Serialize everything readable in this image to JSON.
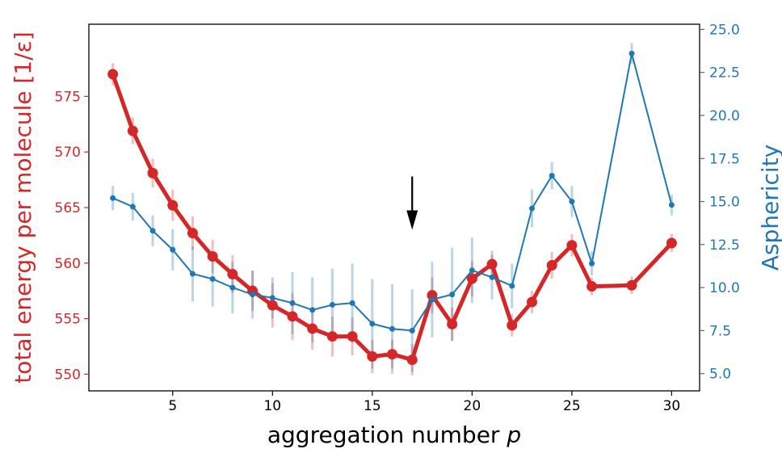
{
  "chart_data": {
    "type": "line",
    "xlabel_text": "aggregation number ",
    "xlabel_var": "p",
    "ylabel_left": "total energy per molecule [1/ε]",
    "ylabel_right": "Asphericity",
    "xlim": [
      0.8,
      31.4
    ],
    "xticks": [
      5,
      10,
      15,
      20,
      25,
      30
    ],
    "ylim_left": [
      548.5,
      581.5
    ],
    "yticks_left": [
      550,
      555,
      560,
      565,
      570,
      575
    ],
    "ylim_right": [
      4.0,
      25.3
    ],
    "yticks_right": [
      5.0,
      7.5,
      10.0,
      12.5,
      15.0,
      17.5,
      20.0,
      22.5,
      25.0
    ],
    "colors": {
      "left": "#d62728",
      "right": "#1f77b4",
      "arrow": "#000000"
    },
    "arrow_x": 17,
    "arrow_y_top": 567.8,
    "arrow_y_bottom": 563.0,
    "series": [
      {
        "name": "",
        "axis": "left",
        "x": [
          2,
          3,
          4,
          5,
          6,
          7,
          8,
          9,
          10,
          11,
          12,
          13,
          14,
          15,
          16,
          17,
          18,
          19,
          20,
          21,
          22,
          23,
          24,
          25,
          26,
          28,
          30
        ],
        "y": [
          577.0,
          571.9,
          568.1,
          565.2,
          562.7,
          560.6,
          559.0,
          557.5,
          556.2,
          555.2,
          554.1,
          553.4,
          553.4,
          551.6,
          551.8,
          551.3,
          557.1,
          554.5,
          558.6,
          559.9,
          554.4,
          556.5,
          559.8,
          561.6,
          557.9,
          558.0,
          561.8
        ],
        "err": [
          1.0,
          1.2,
          1.3,
          1.4,
          1.5,
          1.5,
          1.7,
          1.8,
          2.0,
          2.1,
          1.9,
          1.8,
          1.7,
          1.5,
          1.3,
          1.4,
          1.6,
          1.5,
          1.6,
          1.2,
          1.0,
          1.0,
          1.2,
          1.0,
          0.8,
          0.8,
          0.8
        ]
      },
      {
        "name": "",
        "axis": "right",
        "x": [
          2,
          3,
          4,
          5,
          6,
          7,
          8,
          9,
          10,
          11,
          12,
          13,
          14,
          15,
          16,
          17,
          18,
          19,
          20,
          21,
          22,
          23,
          24,
          25,
          26,
          28,
          30
        ],
        "y": [
          15.2,
          14.7,
          13.3,
          12.2,
          10.8,
          10.5,
          10.0,
          9.6,
          9.4,
          9.1,
          8.7,
          9.0,
          9.1,
          7.9,
          7.6,
          7.5,
          9.3,
          9.6,
          11.0,
          10.6,
          10.1,
          14.6,
          16.5,
          15.0,
          11.4,
          23.6,
          14.8
        ],
        "err": [
          0.7,
          0.8,
          0.9,
          1.2,
          1.6,
          1.6,
          1.5,
          1.4,
          1.2,
          1.8,
          1.9,
          2.1,
          2.3,
          2.6,
          2.6,
          2.4,
          2.2,
          2.7,
          1.9,
          1.3,
          1.3,
          1.1,
          0.8,
          0.9,
          0.7,
          0.6,
          0.6
        ]
      }
    ]
  }
}
